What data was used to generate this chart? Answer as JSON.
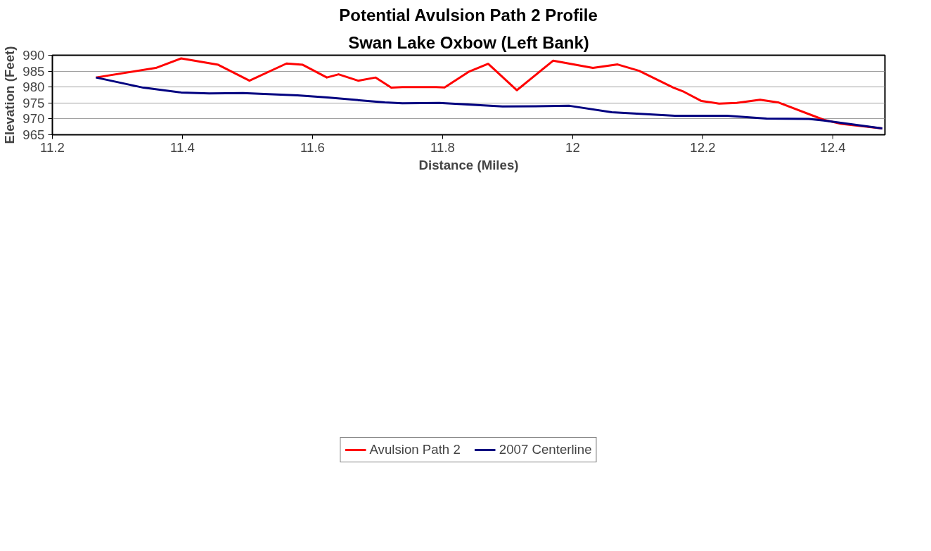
{
  "chart_data": {
    "type": "line",
    "title": "Potential Avulsion Path 2 Profile",
    "subtitle": "Swan Lake Oxbow (Left Bank)",
    "xlabel": "Distance (Miles)",
    "ylabel": "Elevation (Feet)",
    "xlim": [
      11.2,
      12.48
    ],
    "xticks": [
      11.2,
      11.4,
      11.6,
      11.8,
      12,
      12.2,
      12.4
    ],
    "ylim": [
      965,
      990
    ],
    "yticks": [
      965,
      970,
      975,
      980,
      985,
      990
    ],
    "grid": "y",
    "legend": "bottom",
    "marker": "none",
    "line_style": "solid",
    "series": [
      {
        "name": "Avulsion Path 2",
        "color": "#ff0000",
        "x": [
          11.267,
          11.359,
          11.398,
          11.455,
          11.503,
          11.56,
          11.585,
          11.622,
          11.64,
          11.67,
          11.697,
          11.721,
          11.738,
          11.79,
          11.803,
          11.841,
          11.87,
          11.914,
          11.97,
          12.031,
          12.069,
          12.102,
          12.155,
          12.171,
          12.198,
          12.225,
          12.252,
          12.288,
          12.317,
          12.386,
          12.413,
          12.476
        ],
        "values": [
          983,
          986,
          989,
          987,
          982,
          987.4,
          987,
          983,
          984,
          982,
          983,
          979.8,
          980,
          980,
          979.9,
          984.9,
          987.3,
          979,
          988.3,
          986,
          987.1,
          985.1,
          979.8,
          978.5,
          975.6,
          974.8,
          975,
          976,
          975.1,
          969.7,
          968.4,
          967
        ]
      },
      {
        "name": "2007 Centerline",
        "color": "#000080",
        "x": [
          11.267,
          11.34,
          11.398,
          11.441,
          11.493,
          11.577,
          11.623,
          11.711,
          11.738,
          11.795,
          11.892,
          11.961,
          11.995,
          12.06,
          12.157,
          12.237,
          12.298,
          12.363,
          12.386,
          12.476
        ],
        "values": [
          983,
          979.8,
          978.3,
          978,
          978.1,
          977.4,
          976.7,
          975.2,
          974.9,
          975,
          973.9,
          974,
          974.1,
          972.1,
          971,
          971,
          970.1,
          970,
          969.5,
          967
        ]
      }
    ]
  }
}
